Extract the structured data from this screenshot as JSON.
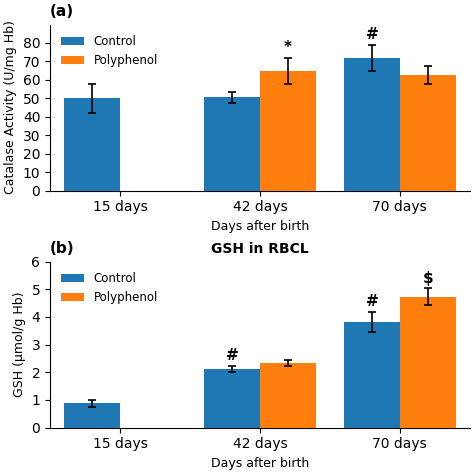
{
  "chart_data": [
    {
      "type": "bar",
      "panel_label": "(a)",
      "ylabel": "Catalase Activity (U/mg Hb)",
      "xlabel": "Days after birth",
      "categories": [
        "15 days",
        "42 days",
        "70 days"
      ],
      "series": [
        {
          "name": "Control",
          "values": [
            50,
            50.5,
            72
          ],
          "errors": [
            8,
            3,
            7
          ]
        },
        {
          "name": "Polyphenol",
          "values": [
            null,
            65,
            62.5
          ],
          "errors": [
            null,
            7,
            5
          ]
        }
      ],
      "ylim": [
        0,
        90
      ],
      "yticks": [
        0,
        10,
        20,
        30,
        40,
        50,
        60,
        70,
        80
      ],
      "annotations": [
        {
          "text": "*",
          "category": "42 days",
          "series": "Polyphenol"
        },
        {
          "text": "#",
          "category": "70 days",
          "series": "Control"
        }
      ],
      "legend": "upper left"
    },
    {
      "type": "bar",
      "panel_label": "(b)",
      "title": "GSH in RBCL",
      "ylabel": "GSH (μmol/g Hb)",
      "xlabel": "Days after birth",
      "categories": [
        "15 days",
        "42 days",
        "70 days"
      ],
      "series": [
        {
          "name": "Control",
          "values": [
            0.88,
            2.12,
            3.82
          ],
          "errors": [
            0.13,
            0.12,
            0.35
          ]
        },
        {
          "name": "Polyphenol",
          "values": [
            null,
            2.33,
            4.73
          ],
          "errors": [
            null,
            0.12,
            0.3
          ]
        }
      ],
      "ylim": [
        0,
        6
      ],
      "yticks": [
        0,
        1,
        2,
        3,
        4,
        5,
        6
      ],
      "annotations": [
        {
          "text": "#",
          "category": "42 days",
          "series": "Control"
        },
        {
          "text": "#",
          "category": "70 days",
          "series": "Control"
        },
        {
          "text": "$",
          "category": "70 days",
          "series": "Polyphenol"
        }
      ],
      "legend": "upper left"
    }
  ]
}
